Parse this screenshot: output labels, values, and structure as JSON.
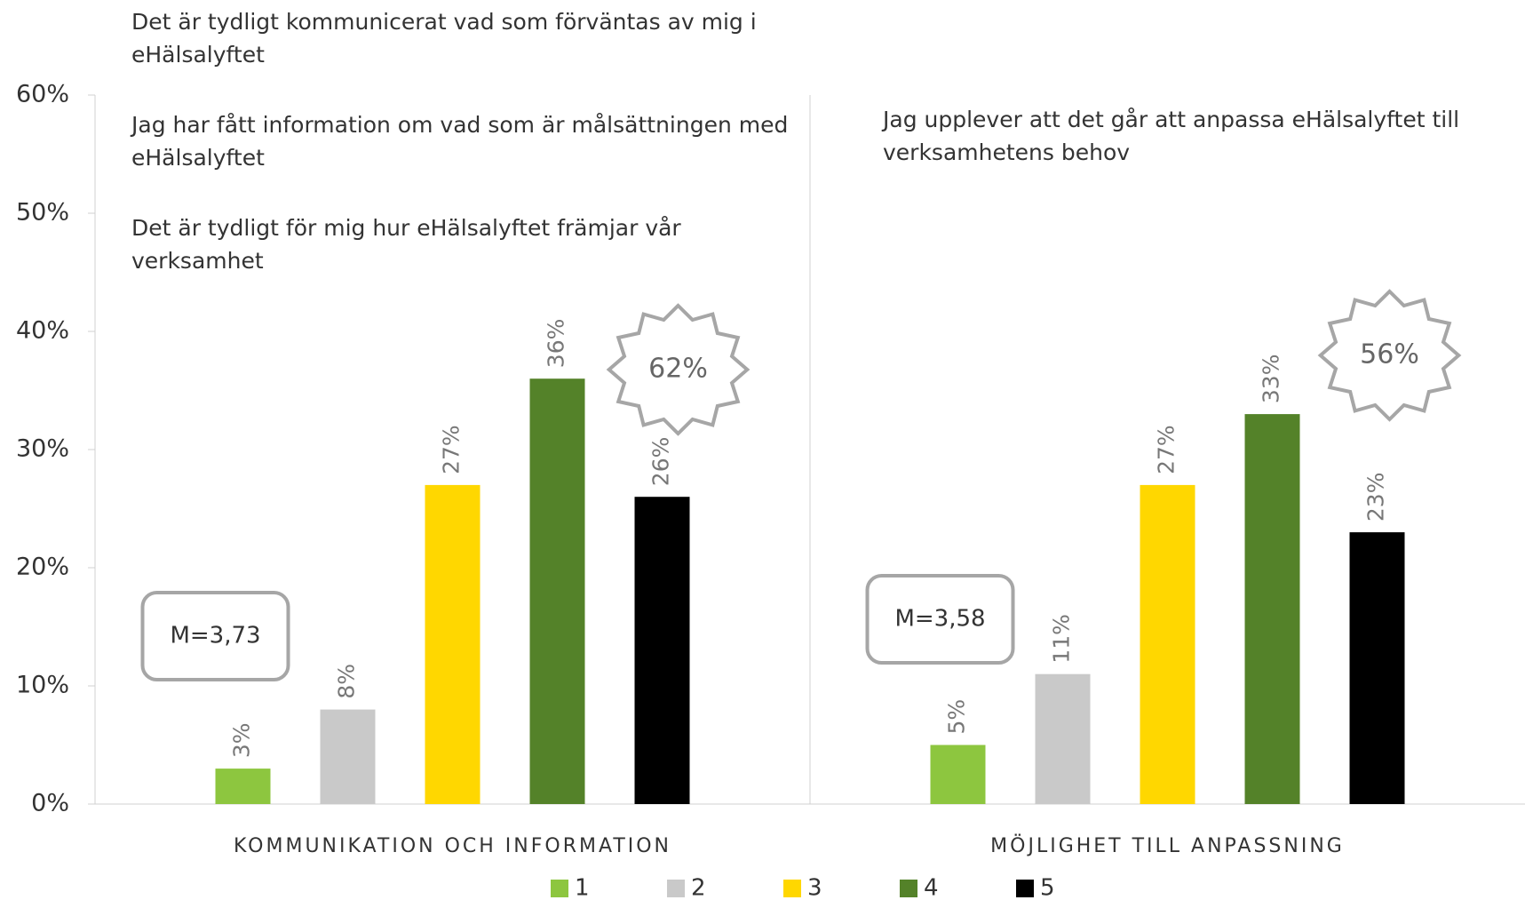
{
  "chart_data": {
    "type": "bar",
    "categories": [
      "KOMMUNIKATION OCH INFORMATION",
      "MÖJLIGHET TILL ANPASSNING"
    ],
    "series": [
      {
        "name": "1",
        "color": "#8dc63f",
        "values": [
          3,
          5
        ],
        "value_labels": [
          "3%",
          "5%"
        ]
      },
      {
        "name": "2",
        "color": "#c9c9c9",
        "values": [
          8,
          11
        ],
        "value_labels": [
          "8%",
          "11%"
        ]
      },
      {
        "name": "3",
        "color": "#ffd700",
        "values": [
          27,
          27
        ],
        "value_labels": [
          "27%",
          "27%"
        ]
      },
      {
        "name": "4",
        "color": "#548229",
        "values": [
          36,
          33
        ],
        "value_labels": [
          "36%",
          "33%"
        ]
      },
      {
        "name": "5",
        "color": "#000000",
        "values": [
          26,
          23
        ],
        "value_labels": [
          "26%",
          "23%"
        ]
      }
    ],
    "ylim": [
      0,
      60
    ],
    "yticks": [
      {
        "value": 0,
        "label": "0%"
      },
      {
        "value": 10,
        "label": "10%"
      },
      {
        "value": 20,
        "label": "20%"
      },
      {
        "value": 30,
        "label": "30%"
      },
      {
        "value": 40,
        "label": "40%"
      },
      {
        "value": 50,
        "label": "50%"
      },
      {
        "value": 60,
        "label": "60%"
      }
    ],
    "group_notes": [
      {
        "statements": [
          "Det är tydligt kommunicerat vad som förväntas av mig i eHälsalyftet",
          "Jag har fått information om vad som är målsättningen med eHälsalyftet",
          "Det är tydligt för mig hur eHälsalyftet främjar vår verksamhet"
        ],
        "mean": "M=3,73",
        "top_two": "62%"
      },
      {
        "statements": [
          "Jag upplever att det går att anpassa eHälsalyftet till verksamhetens behov"
        ],
        "mean": "M=3,58",
        "top_two": "56%"
      }
    ],
    "legend": "bottom"
  }
}
